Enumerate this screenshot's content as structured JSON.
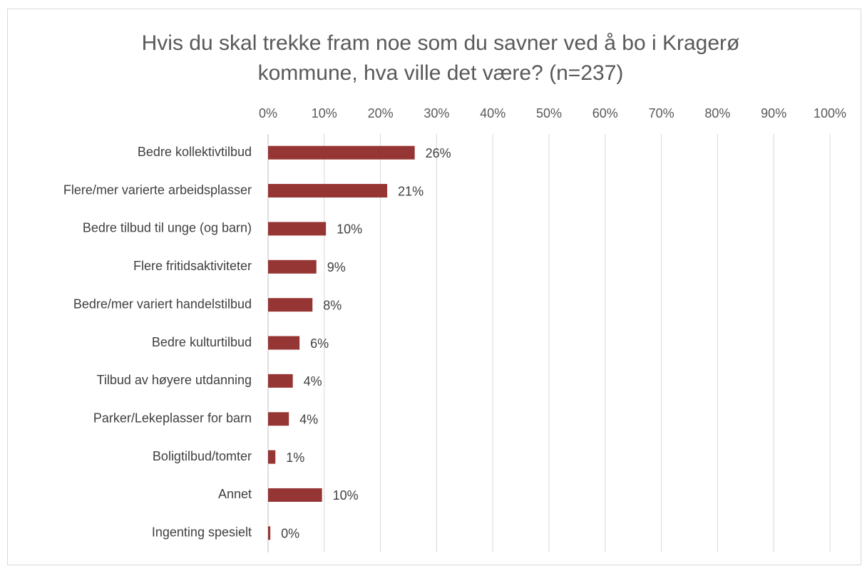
{
  "chart_data": {
    "type": "bar",
    "orientation": "horizontal",
    "title": [
      "Hvis du skal trekke fram noe som du savner ved å bo i Kragerø",
      "kommune, hva ville det være? (n=237)"
    ],
    "categories": [
      "Bedre kollektivtilbud",
      "Flere/mer varierte arbeidsplasser",
      "Bedre tilbud til unge (og barn)",
      "Flere fritidsaktiviteter",
      "Bedre/mer variert handelstilbud",
      "Bedre kulturtilbud",
      "Tilbud av høyere utdanning",
      "Parker/Lekeplasser for barn",
      "Boligtilbud/tomter",
      "Annet",
      "Ingenting spesielt"
    ],
    "values": [
      26.1,
      21.2,
      10.3,
      8.6,
      7.9,
      5.6,
      4.4,
      3.7,
      1.3,
      9.6,
      0.4
    ],
    "value_labels": [
      "26%",
      "21%",
      "10%",
      "9%",
      "8%",
      "6%",
      "4%",
      "4%",
      "1%",
      "10%",
      "0%"
    ],
    "color": "#963634",
    "xlim": [
      0,
      100
    ],
    "xticks": [
      {
        "value": 0,
        "label": "0%"
      },
      {
        "value": 10,
        "label": "10%"
      },
      {
        "value": 20,
        "label": "20%"
      },
      {
        "value": 30,
        "label": "30%"
      },
      {
        "value": 40,
        "label": "40%"
      },
      {
        "value": 50,
        "label": "50%"
      },
      {
        "value": 60,
        "label": "60%"
      },
      {
        "value": 70,
        "label": "70%"
      },
      {
        "value": 80,
        "label": "80%"
      },
      {
        "value": 90,
        "label": "90%"
      },
      {
        "value": 100,
        "label": "100%"
      }
    ],
    "grid": true
  }
}
